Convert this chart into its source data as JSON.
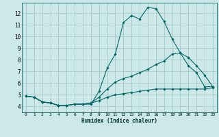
{
  "xlabel": "Humidex (Indice chaleur)",
  "xlim": [
    -0.5,
    23.5
  ],
  "ylim": [
    3.5,
    12.9
  ],
  "yticks": [
    4,
    5,
    6,
    7,
    8,
    9,
    10,
    11,
    12
  ],
  "xticks": [
    0,
    1,
    2,
    3,
    4,
    5,
    6,
    7,
    8,
    9,
    10,
    11,
    12,
    13,
    14,
    15,
    16,
    17,
    18,
    19,
    20,
    21,
    22,
    23
  ],
  "bg_color": "#cce8e8",
  "grid_color": "#aacccc",
  "line_color": "#006666",
  "line1_y": [
    4.9,
    4.8,
    4.4,
    4.3,
    4.1,
    4.1,
    4.2,
    4.2,
    4.2,
    5.3,
    7.3,
    8.5,
    11.2,
    11.8,
    11.5,
    12.5,
    12.4,
    11.3,
    9.8,
    8.6,
    7.5,
    6.9,
    5.7,
    5.7
  ],
  "line2_y": [
    4.9,
    4.8,
    4.4,
    4.3,
    4.1,
    4.1,
    4.2,
    4.2,
    4.3,
    4.8,
    5.5,
    6.1,
    6.4,
    6.6,
    6.9,
    7.2,
    7.6,
    7.9,
    8.5,
    8.6,
    8.2,
    7.5,
    6.7,
    5.7
  ],
  "line3_y": [
    4.9,
    4.8,
    4.4,
    4.3,
    4.1,
    4.1,
    4.2,
    4.2,
    4.3,
    4.5,
    4.8,
    5.0,
    5.1,
    5.2,
    5.3,
    5.4,
    5.5,
    5.5,
    5.5,
    5.5,
    5.5,
    5.5,
    5.5,
    5.6
  ]
}
